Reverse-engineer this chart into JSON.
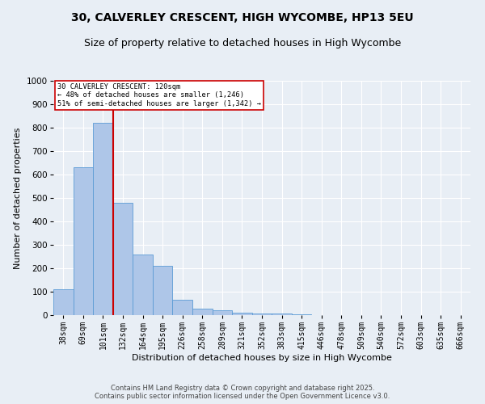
{
  "title_line1": "30, CALVERLEY CRESCENT, HIGH WYCOMBE, HP13 5EU",
  "title_line2": "Size of property relative to detached houses in High Wycombe",
  "xlabel": "Distribution of detached houses by size in High Wycombe",
  "ylabel": "Number of detached properties",
  "footnote": "Contains HM Land Registry data © Crown copyright and database right 2025.\nContains public sector information licensed under the Open Government Licence v3.0.",
  "bar_labels": [
    "38sqm",
    "69sqm",
    "101sqm",
    "132sqm",
    "164sqm",
    "195sqm",
    "226sqm",
    "258sqm",
    "289sqm",
    "321sqm",
    "352sqm",
    "383sqm",
    "415sqm",
    "446sqm",
    "478sqm",
    "509sqm",
    "540sqm",
    "572sqm",
    "603sqm",
    "635sqm",
    "666sqm"
  ],
  "bar_values": [
    110,
    630,
    820,
    480,
    260,
    210,
    65,
    28,
    20,
    12,
    8,
    8,
    5,
    0,
    0,
    0,
    0,
    0,
    0,
    0,
    0
  ],
  "bar_color": "#aec6e8",
  "bar_edge_color": "#5b9bd5",
  "property_bin_index": 2,
  "annotation_line1": "30 CALVERLEY CRESCENT: 120sqm",
  "annotation_line2": "← 48% of detached houses are smaller (1,246)",
  "annotation_line3": "51% of semi-detached houses are larger (1,342) →",
  "vline_color": "#cc0000",
  "annotation_box_color": "#cc0000",
  "ylim": [
    0,
    1000
  ],
  "yticks": [
    0,
    100,
    200,
    300,
    400,
    500,
    600,
    700,
    800,
    900,
    1000
  ],
  "background_color": "#e8eef5",
  "grid_color": "#ffffff",
  "title_fontsize": 10,
  "subtitle_fontsize": 9,
  "xlabel_fontsize": 8,
  "ylabel_fontsize": 8,
  "tick_fontsize": 7,
  "footnote_fontsize": 6
}
